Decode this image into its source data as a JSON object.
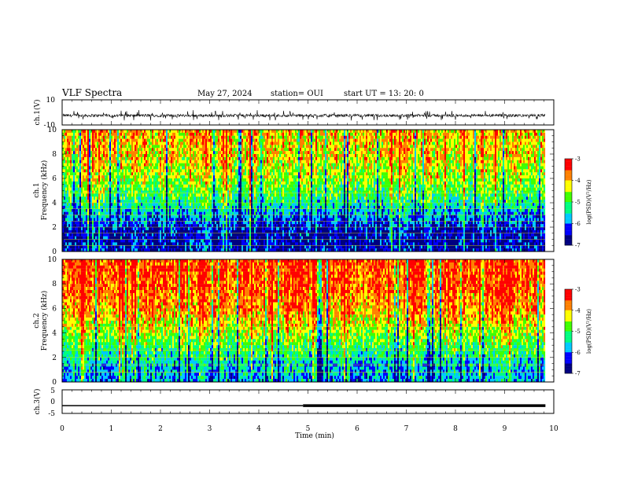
{
  "header": {
    "title": "VLF Spectra",
    "date": "May 27, 2024",
    "station": "station= OUI",
    "start_ut": "start  UT  =   13: 20: 0"
  },
  "colors": {
    "colormap": [
      "#000080",
      "#0000ff",
      "#00c8ff",
      "#00ff80",
      "#40ff00",
      "#ffff00",
      "#ff8000",
      "#ff0000",
      "#ffffff"
    ],
    "trace": "#000000",
    "harmonic_lines": "#e6e600"
  },
  "chart_data": [
    {
      "type": "line",
      "name": "ch1-waveform",
      "ylabel": "ch.1(V)",
      "ylim": [
        -10,
        10
      ],
      "yticks": [
        "10",
        "-10"
      ],
      "xlim": [
        0,
        9.83
      ],
      "baseline": -2.5,
      "note_values": "noise waveform around -2.5 V with spikes between about -6 and 2"
    },
    {
      "type": "heatmap",
      "name": "ch1-spectrogram",
      "ylabel_line1": "ch.1",
      "ylabel_line2": "Frequency  (kHz)",
      "ylim": [
        0,
        10
      ],
      "xlim": [
        0,
        9.83
      ],
      "yticks": [
        "0",
        "2",
        "4",
        "6",
        "8",
        "10"
      ],
      "colorbar": {
        "label": "log(PSD)(V²/Hz)",
        "range": [
          -7,
          -3
        ],
        "ticks": [
          "-3",
          "-4",
          "-5",
          "-6",
          "-7"
        ]
      },
      "profile_log_psd": [
        {
          "f_khz": 0.2,
          "level": -6.4
        },
        {
          "f_khz": 1.5,
          "level": -6.5
        },
        {
          "f_khz": 3.0,
          "level": -5.8
        },
        {
          "f_khz": 4.5,
          "level": -5.0
        },
        {
          "f_khz": 6.0,
          "level": -4.5
        },
        {
          "f_khz": 8.0,
          "level": -4.1
        },
        {
          "f_khz": 9.8,
          "level": -4.0
        }
      ],
      "harmonic_lines_khz": [
        0.5,
        1.0,
        1.5,
        2.0,
        2.5,
        3.0,
        3.5,
        4.0,
        4.8
      ]
    },
    {
      "type": "heatmap",
      "name": "ch2-spectrogram",
      "ylabel_line1": "ch.2",
      "ylabel_line2": "Frequency  (kHz)",
      "ylim": [
        0,
        10
      ],
      "xlim": [
        0,
        9.83
      ],
      "yticks": [
        "0",
        "2",
        "4",
        "6",
        "8",
        "10"
      ],
      "colorbar": {
        "label": "log(PSD)(V²/Hz)",
        "range": [
          -7,
          -3
        ],
        "ticks": [
          "-3",
          "-4",
          "-5",
          "-6",
          "-7"
        ]
      },
      "profile_log_psd": [
        {
          "f_khz": 0.2,
          "level": -5.8
        },
        {
          "f_khz": 1.5,
          "level": -5.6
        },
        {
          "f_khz": 3.0,
          "level": -4.9
        },
        {
          "f_khz": 4.5,
          "level": -4.3
        },
        {
          "f_khz": 6.0,
          "level": -3.8
        },
        {
          "f_khz": 8.0,
          "level": -3.5
        },
        {
          "f_khz": 9.8,
          "level": -3.4
        }
      ],
      "harmonic_lines_khz": [
        0.8,
        1.4,
        2.0,
        2.6,
        4.5
      ]
    },
    {
      "type": "line",
      "name": "ch3-trace",
      "ylabel": "ch.3(V)",
      "ylim": [
        -5,
        5
      ],
      "yticks": [
        "5",
        "0",
        "-5"
      ],
      "xlim": [
        0,
        9.83
      ],
      "segments": [
        {
          "x": [
            0,
            4.9
          ],
          "y": -1.7,
          "style": "thin"
        },
        {
          "x": [
            4.9,
            9.83
          ],
          "y": -1.7,
          "style": "thick"
        }
      ]
    }
  ],
  "time_axis": {
    "label": "Time  (min)",
    "range": [
      0,
      10
    ],
    "ticks": [
      "0",
      "1",
      "2",
      "3",
      "4",
      "5",
      "6",
      "7",
      "8",
      "9",
      "10"
    ]
  }
}
